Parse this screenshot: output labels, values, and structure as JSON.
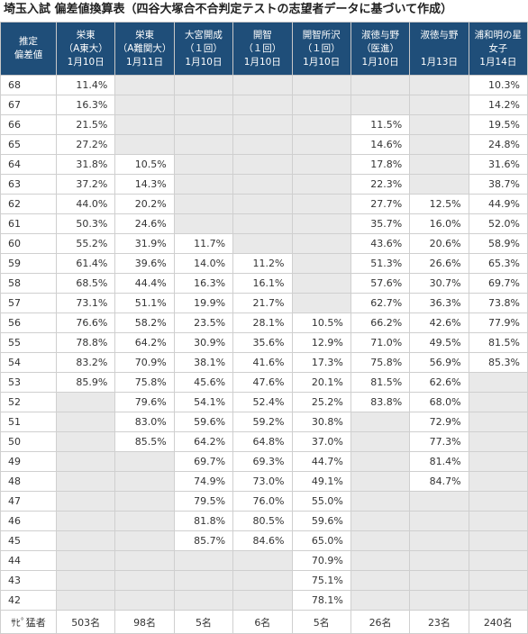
{
  "title": "埼玉入試 偏差値換算表（四谷大塚合不合判定テストの志望者データに基づいて作成）",
  "table": {
    "header": [
      [
        "推定",
        "偏差値"
      ],
      [
        "栄東",
        "（A東大）",
        "1月10日"
      ],
      [
        "栄東",
        "（A難関大）",
        "1月11日"
      ],
      [
        "大宮開成",
        "（１回）",
        "1月10日"
      ],
      [
        "開智",
        "（１回）",
        "1月10日"
      ],
      [
        "開智所沢",
        "（１回）",
        "1月10日"
      ],
      [
        "淑徳与野",
        "（医進）",
        "1月10日"
      ],
      [
        "淑徳与野",
        "1月13日"
      ],
      [
        "浦和明の星",
        "女子",
        "1月14日"
      ]
    ],
    "rows": [
      [
        "68",
        "11.4%",
        null,
        null,
        null,
        null,
        null,
        null,
        "10.3%"
      ],
      [
        "67",
        "16.3%",
        null,
        null,
        null,
        null,
        null,
        null,
        "14.2%"
      ],
      [
        "66",
        "21.5%",
        null,
        null,
        null,
        null,
        "11.5%",
        null,
        "19.5%"
      ],
      [
        "65",
        "27.2%",
        null,
        null,
        null,
        null,
        "14.6%",
        null,
        "24.8%"
      ],
      [
        "64",
        "31.8%",
        "10.5%",
        null,
        null,
        null,
        "17.8%",
        null,
        "31.6%"
      ],
      [
        "63",
        "37.2%",
        "14.3%",
        null,
        null,
        null,
        "22.3%",
        null,
        "38.7%"
      ],
      [
        "62",
        "44.0%",
        "20.2%",
        null,
        null,
        null,
        "27.7%",
        "12.5%",
        "44.9%"
      ],
      [
        "61",
        "50.3%",
        "24.6%",
        null,
        null,
        null,
        "35.7%",
        "16.0%",
        "52.0%"
      ],
      [
        "60",
        "55.2%",
        "31.9%",
        "11.7%",
        null,
        null,
        "43.6%",
        "20.6%",
        "58.9%"
      ],
      [
        "59",
        "61.4%",
        "39.6%",
        "14.0%",
        "11.2%",
        null,
        "51.3%",
        "26.6%",
        "65.3%"
      ],
      [
        "58",
        "68.5%",
        "44.4%",
        "16.3%",
        "16.1%",
        null,
        "57.6%",
        "30.7%",
        "69.7%"
      ],
      [
        "57",
        "73.1%",
        "51.1%",
        "19.9%",
        "21.7%",
        null,
        "62.7%",
        "36.3%",
        "73.8%"
      ],
      [
        "56",
        "76.6%",
        "58.2%",
        "23.5%",
        "28.1%",
        "10.5%",
        "66.2%",
        "42.6%",
        "77.9%"
      ],
      [
        "55",
        "78.8%",
        "64.2%",
        "30.9%",
        "35.6%",
        "12.9%",
        "71.0%",
        "49.5%",
        "81.5%"
      ],
      [
        "54",
        "83.2%",
        "70.9%",
        "38.1%",
        "41.6%",
        "17.3%",
        "75.8%",
        "56.9%",
        "85.3%"
      ],
      [
        "53",
        "85.9%",
        "75.8%",
        "45.6%",
        "47.6%",
        "20.1%",
        "81.5%",
        "62.6%",
        null
      ],
      [
        "52",
        null,
        "79.6%",
        "54.1%",
        "52.4%",
        "25.2%",
        "83.8%",
        "68.0%",
        null
      ],
      [
        "51",
        null,
        "83.0%",
        "59.6%",
        "59.2%",
        "30.8%",
        null,
        "72.9%",
        null
      ],
      [
        "50",
        null,
        "85.5%",
        "64.2%",
        "64.8%",
        "37.0%",
        null,
        "77.3%",
        null
      ],
      [
        "49",
        null,
        null,
        "69.7%",
        "69.3%",
        "44.7%",
        null,
        "81.4%",
        null
      ],
      [
        "48",
        null,
        null,
        "74.9%",
        "73.0%",
        "49.1%",
        null,
        "84.7%",
        null
      ],
      [
        "47",
        null,
        null,
        "79.5%",
        "76.0%",
        "55.0%",
        null,
        null,
        null
      ],
      [
        "46",
        null,
        null,
        "81.8%",
        "80.5%",
        "59.6%",
        null,
        null,
        null
      ],
      [
        "45",
        null,
        null,
        "85.7%",
        "84.6%",
        "65.0%",
        null,
        null,
        null
      ],
      [
        "44",
        null,
        null,
        null,
        null,
        "70.9%",
        null,
        null,
        null
      ],
      [
        "43",
        null,
        null,
        null,
        null,
        "75.1%",
        null,
        null,
        null
      ],
      [
        "42",
        null,
        null,
        null,
        null,
        "78.1%",
        null,
        null,
        null
      ]
    ],
    "footer": [
      "ｻﾋﾟ猛者",
      "503名",
      "98名",
      "5名",
      "6名",
      "5名",
      "26名",
      "23名",
      "240名"
    ]
  }
}
